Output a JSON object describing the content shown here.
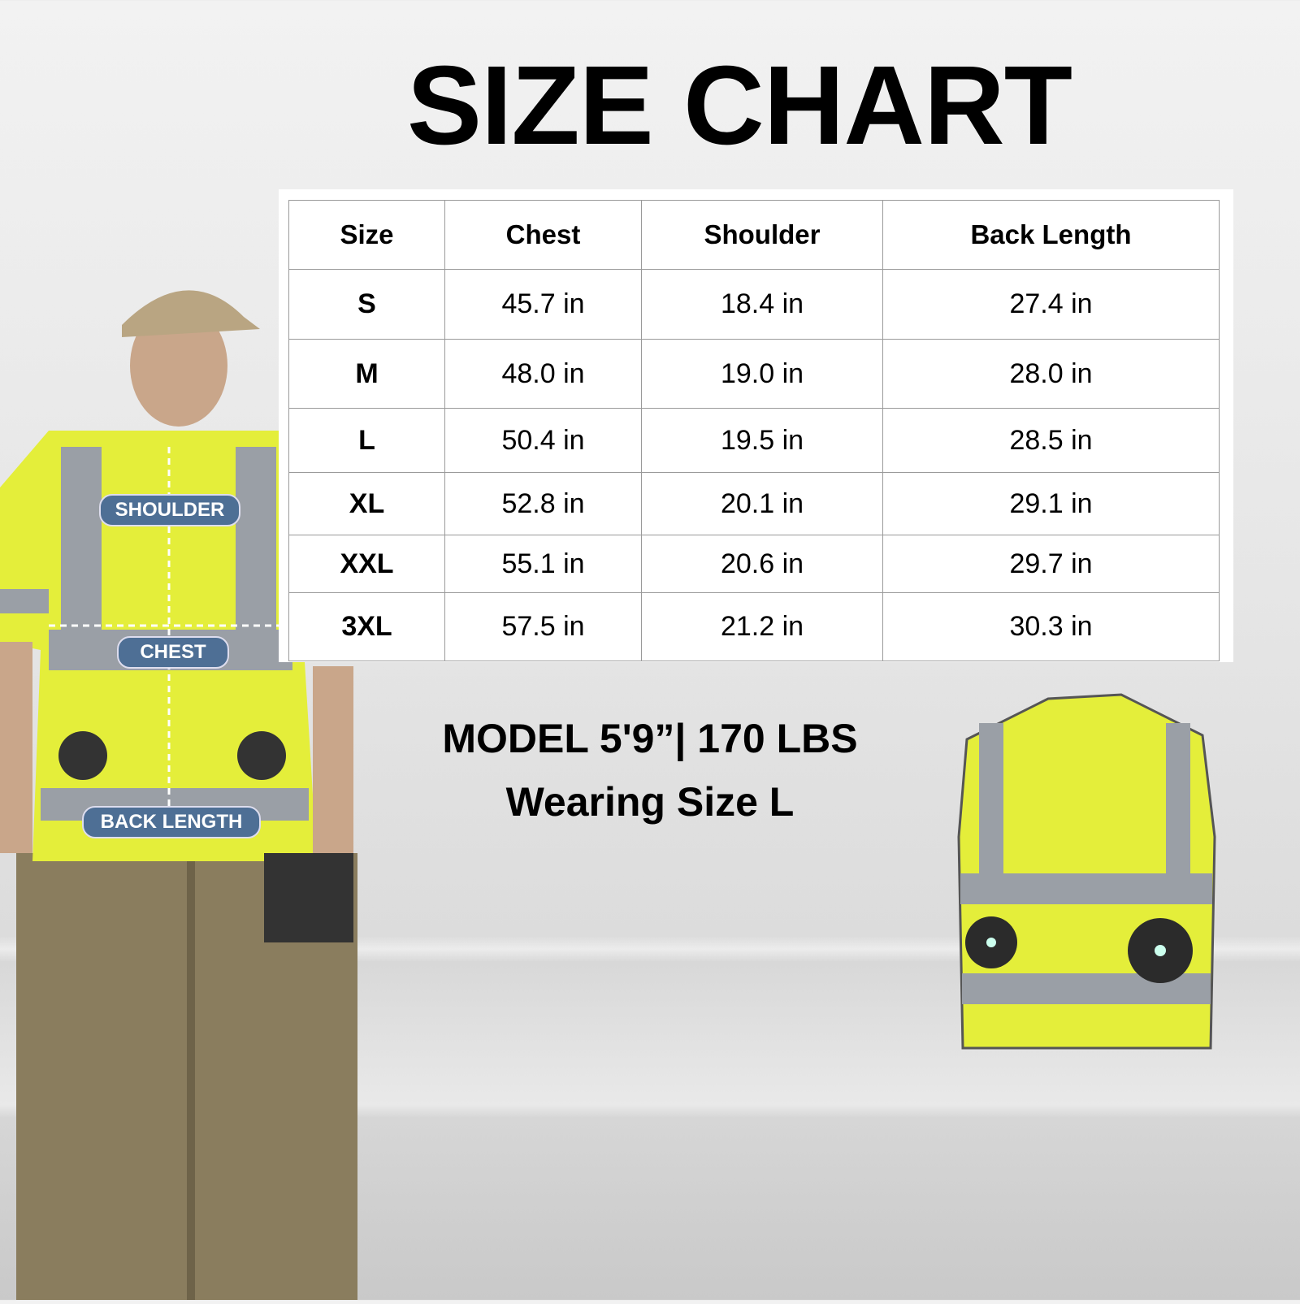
{
  "title": "SIZE CHART",
  "table": {
    "headers": [
      "Size",
      "Chest",
      "Shoulder",
      "Back Length"
    ],
    "rows": [
      [
        "S",
        "45.7 in",
        "18.4 in",
        "27.4 in"
      ],
      [
        "M",
        "48.0 in",
        "19.0 in",
        "28.0 in"
      ],
      [
        "L",
        "50.4 in",
        "19.5 in",
        "28.5 in"
      ],
      [
        "XL",
        "52.8 in",
        "20.1 in",
        "29.1 in"
      ],
      [
        "XXL",
        "55.1 in",
        "20.6 in",
        "29.7 in"
      ],
      [
        "3XL",
        "57.5 in",
        "21.2 in",
        "30.3 in"
      ]
    ]
  },
  "model": {
    "line1": "MODEL 5'9”| 170 LBS",
    "line2": "Wearing Size L"
  },
  "labels": {
    "shoulder": "SHOULDER",
    "chest": "CHEST",
    "back_length": "BACK LENGTH"
  },
  "colors": {
    "vest": "#e6f03a",
    "reflective": "#9a9fa6",
    "tag": "#4e6f95"
  }
}
